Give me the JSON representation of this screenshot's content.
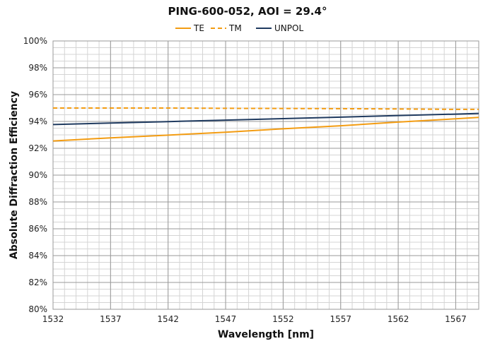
{
  "chart_data": {
    "type": "line",
    "title": "PING-600-052, AOI = 29.4°",
    "xlabel": "Wavelength [nm]",
    "ylabel": "Absolute Diffraction Efficiency",
    "xlim": [
      1532,
      1569
    ],
    "ylim": [
      80,
      100
    ],
    "x_ticks": [
      1532,
      1537,
      1542,
      1547,
      1552,
      1557,
      1562,
      1567
    ],
    "x_tick_labels": [
      "1532",
      "1537",
      "1542",
      "1547",
      "1552",
      "1557",
      "1562",
      "1567"
    ],
    "y_ticks": [
      80,
      82,
      84,
      86,
      88,
      90,
      92,
      94,
      96,
      98,
      100
    ],
    "y_tick_labels": [
      "80%",
      "82%",
      "84%",
      "86%",
      "88%",
      "90%",
      "92%",
      "94%",
      "96%",
      "98%",
      "100%"
    ],
    "x_minor_step": 1,
    "y_minor_step": 0.5,
    "grid": true,
    "legend_position": "top-center",
    "x": [
      1532,
      1537,
      1542,
      1547,
      1552,
      1557,
      1562,
      1567,
      1569
    ],
    "series": [
      {
        "name": "TE",
        "color": "#F39C12",
        "style": "solid",
        "values": [
          92.55,
          92.78,
          92.98,
          93.2,
          93.45,
          93.68,
          93.95,
          94.2,
          94.3
        ]
      },
      {
        "name": "TM",
        "color": "#F39C12",
        "style": "dashed",
        "values": [
          95.0,
          95.0,
          95.0,
          94.98,
          94.97,
          94.95,
          94.93,
          94.9,
          94.9
        ]
      },
      {
        "name": "UNPOL",
        "color": "#1F3A5F",
        "style": "solid",
        "values": [
          93.77,
          93.88,
          93.99,
          94.1,
          94.21,
          94.32,
          94.44,
          94.55,
          94.6
        ]
      }
    ]
  }
}
